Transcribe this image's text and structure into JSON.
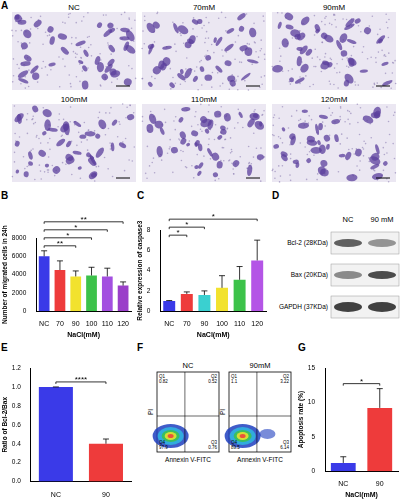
{
  "micrographs": {
    "panel": "A",
    "labels": [
      "NC",
      "70mM",
      "90mM",
      "100mM",
      "110mM",
      "120mM"
    ]
  },
  "chart_data": [
    {
      "panel": "B",
      "type": "bar",
      "y_label": "Number of migrated cells in 24h",
      "x_label": "NaCl(mM)",
      "categories": [
        "NC",
        "70",
        "90",
        "100",
        "110",
        "120"
      ],
      "values": [
        6000,
        4500,
        3800,
        3900,
        3800,
        2800
      ],
      "errors": [
        600,
        1000,
        600,
        900,
        900,
        400
      ],
      "colors": [
        "#3a3ae8",
        "#ee3b3b",
        "#f2e22e",
        "#3cc24a",
        "#a34fe0",
        "#9a3fc9"
      ],
      "ylim": [
        0,
        8000
      ],
      "yticks": [
        0,
        2000,
        4000,
        6000,
        8000
      ],
      "grid": false,
      "significance": [
        {
          "from": "NC",
          "to": "90",
          "label": "**"
        },
        {
          "from": "NC",
          "to": "100",
          "label": "*"
        },
        {
          "from": "NC",
          "to": "110",
          "label": "*"
        },
        {
          "from": "NC",
          "to": "120",
          "label": "**"
        }
      ]
    },
    {
      "panel": "C",
      "type": "bar",
      "y_label": "Relative expression of caspase3",
      "x_label": "NaCl(mM)",
      "categories": [
        "NC",
        "70",
        "90",
        "100",
        "110",
        "120"
      ],
      "values": [
        1.0,
        1.7,
        1.6,
        2.3,
        3.1,
        5.0
      ],
      "errors": [
        0.05,
        0.2,
        0.4,
        1.2,
        1.3,
        2.0
      ],
      "colors": [
        "#3a3ae8",
        "#ee3b3b",
        "#3ad0d0",
        "#f2e22e",
        "#3cc24a",
        "#b455e6"
      ],
      "ylim": [
        0,
        8
      ],
      "yticks": [
        0,
        2,
        4,
        6,
        8
      ],
      "grid": false,
      "significance": [
        {
          "from": "NC",
          "to": "70",
          "label": "*"
        },
        {
          "from": "NC",
          "to": "90",
          "label": "*"
        },
        {
          "from": "NC",
          "to": "120",
          "label": "*"
        }
      ]
    },
    {
      "panel": "E",
      "type": "bar",
      "y_label": "Ratio of Bcl-2/Bax",
      "categories": [
        "NC",
        "90"
      ],
      "values": [
        1.0,
        0.4
      ],
      "errors": [
        0,
        0.05
      ],
      "colors": [
        "#3a3ae8",
        "#ee3b3b"
      ],
      "ylim": [
        0,
        1.2
      ],
      "yticks": [
        {
          "value": 0,
          "label": "0.0"
        },
        0.2,
        0.4,
        0.6,
        0.8,
        {
          "value": 1,
          "label": "1.0"
        },
        1.2
      ],
      "grid": false,
      "significance": [
        {
          "from": "NC",
          "to": "90",
          "label": "****"
        }
      ]
    },
    {
      "panel": "G",
      "type": "bar",
      "y_label": "Apoptosis rate (%)",
      "x_label": "NaCl(mM)",
      "categories": [
        "NC",
        "90"
      ],
      "values": [
        1.2,
        9.2
      ],
      "errors": [
        0.9,
        2.8
      ],
      "colors": [
        "#3a3ae8",
        "#ee3b3b"
      ],
      "ylim": [
        0,
        15
      ],
      "yticks": [
        0,
        5,
        10,
        15
      ],
      "grid": false,
      "significance": [
        {
          "from": "NC",
          "to": "90",
          "label": "*"
        }
      ]
    }
  ],
  "western_blot": {
    "panel": "D",
    "lanes": [
      "NC",
      "90 mM"
    ],
    "bands": [
      "Bcl-2 (28KDa)",
      "Bax (20KDa)",
      "GAPDH (37KDa)"
    ]
  },
  "flow_cytometry": {
    "panel": "F",
    "x_label": "Annexin V-FITC",
    "y_label": "PI",
    "plots": [
      {
        "title": "NC",
        "quadrants": [
          {
            "name": "Q1",
            "value": 0.82
          },
          {
            "name": "Q2",
            "value": 0.52
          },
          {
            "name": "Q3",
            "value": 0.76
          },
          {
            "name": "Q4",
            "value": 97.9
          }
        ]
      },
      {
        "title": "90mM",
        "quadrants": [
          {
            "name": "Q1",
            "value": 1.1
          },
          {
            "name": "Q2",
            "value": 3.22
          },
          {
            "name": "Q3",
            "value": 6.14
          },
          {
            "name": "Q4",
            "value": 89.5
          }
        ]
      }
    ]
  }
}
